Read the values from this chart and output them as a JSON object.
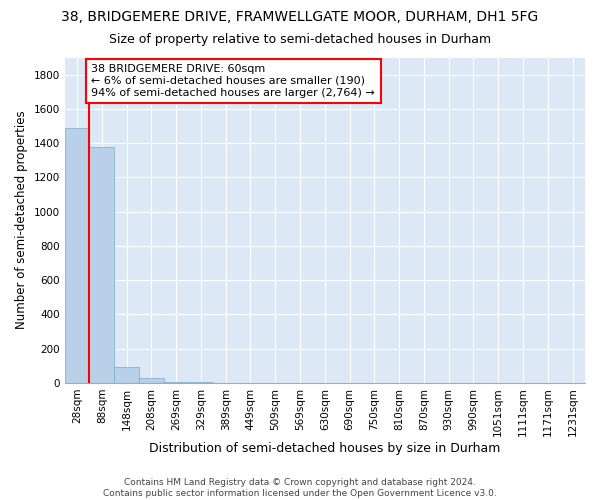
{
  "title1": "38, BRIDGEMERE DRIVE, FRAMWELLGATE MOOR, DURHAM, DH1 5FG",
  "title2": "Size of property relative to semi-detached houses in Durham",
  "xlabel": "Distribution of semi-detached houses by size in Durham",
  "ylabel": "Number of semi-detached properties",
  "categories": [
    "28sqm",
    "88sqm",
    "148sqm",
    "208sqm",
    "269sqm",
    "329sqm",
    "389sqm",
    "449sqm",
    "509sqm",
    "569sqm",
    "630sqm",
    "690sqm",
    "750sqm",
    "810sqm",
    "870sqm",
    "930sqm",
    "990sqm",
    "1051sqm",
    "1111sqm",
    "1171sqm",
    "1231sqm"
  ],
  "values": [
    1490,
    1380,
    95,
    28,
    5,
    2,
    1,
    1,
    0,
    0,
    0,
    0,
    0,
    0,
    0,
    0,
    0,
    0,
    0,
    0,
    0
  ],
  "bar_color": "#b8d0e8",
  "bar_edgecolor": "#7aaac8",
  "red_line_x": 0.48,
  "annotation_text": "38 BRIDGEMERE DRIVE: 60sqm\n← 6% of semi-detached houses are smaller (190)\n94% of semi-detached houses are larger (2,764) →",
  "annotation_box_color": "white",
  "annotation_box_edgecolor": "red",
  "ylim": [
    0,
    1900
  ],
  "yticks": [
    0,
    200,
    400,
    600,
    800,
    1000,
    1200,
    1400,
    1600,
    1800
  ],
  "background_color": "#dce8f5",
  "grid_color": "white",
  "footnote": "Contains HM Land Registry data © Crown copyright and database right 2024.\nContains public sector information licensed under the Open Government Licence v3.0.",
  "title1_fontsize": 10,
  "title2_fontsize": 9,
  "xlabel_fontsize": 9,
  "ylabel_fontsize": 8.5,
  "tick_fontsize": 7.5,
  "footnote_fontsize": 6.5,
  "ann_fontsize": 8
}
